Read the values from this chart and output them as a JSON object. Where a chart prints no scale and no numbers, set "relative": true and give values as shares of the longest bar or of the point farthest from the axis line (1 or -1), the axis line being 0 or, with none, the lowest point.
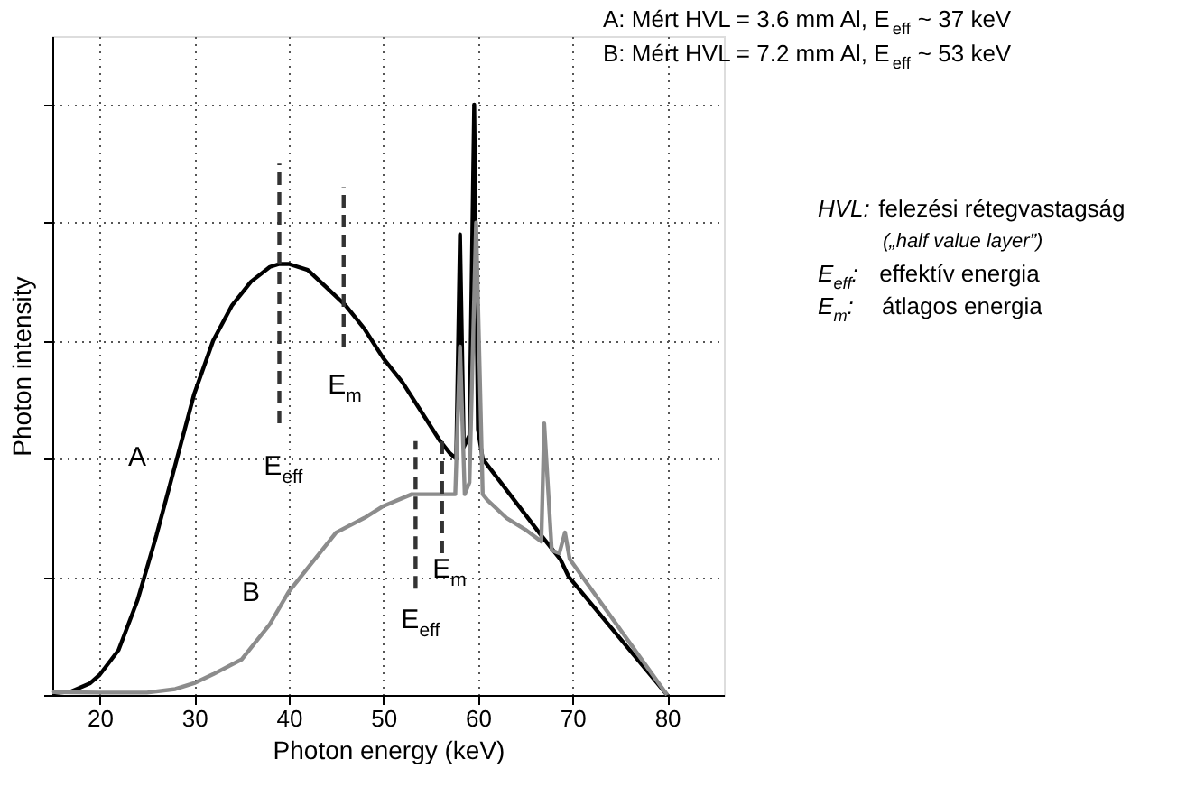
{
  "chart_data": {
    "type": "line",
    "relative": true,
    "xlabel": "Photon energy (keV)",
    "ylabel": "Photon intensity",
    "xlim": [
      15,
      86
    ],
    "xticks": [
      20,
      30,
      40,
      50,
      60,
      70,
      80
    ],
    "grid": true,
    "marker": "none",
    "line_style": "solid",
    "series": [
      {
        "color": "#000000",
        "x": [
          15,
          17,
          19,
          20,
          22,
          24,
          26,
          28,
          30,
          32,
          34,
          36,
          38,
          39,
          40,
          42,
          44,
          46,
          48,
          50,
          52,
          54,
          56,
          57,
          57.7,
          58.1,
          58.5,
          59.1,
          59.6,
          60.0,
          60.5,
          66.7,
          68.7,
          69.6,
          80
        ],
        "values": [
          0.003,
          0.006,
          0.02,
          0.034,
          0.076,
          0.16,
          0.27,
          0.39,
          0.51,
          0.6,
          0.66,
          0.7,
          0.725,
          0.73,
          0.73,
          0.72,
          0.69,
          0.66,
          0.62,
          0.57,
          0.53,
          0.48,
          0.43,
          0.41,
          0.4,
          0.78,
          0.42,
          0.44,
          1.0,
          0.45,
          0.4,
          0.27,
          0.23,
          0.2,
          0
        ]
      },
      {
        "color": "#8c8c8c",
        "x": [
          15,
          20,
          25,
          28,
          30,
          32,
          35,
          38,
          40,
          45,
          48,
          50,
          53,
          56,
          57.6,
          58.1,
          58.6,
          59.1,
          59.8,
          60.5,
          61,
          63,
          65,
          66.7,
          67.0,
          67.8,
          68.6,
          69.2,
          69.7,
          80
        ],
        "values": [
          0.005,
          0.004,
          0.004,
          0.01,
          0.02,
          0.035,
          0.06,
          0.12,
          0.175,
          0.275,
          0.3,
          0.32,
          0.34,
          0.34,
          0.34,
          0.59,
          0.34,
          0.36,
          0.8,
          0.34,
          0.33,
          0.3,
          0.28,
          0.26,
          0.46,
          0.245,
          0.24,
          0.275,
          0.23,
          0
        ]
      },
      {
        "color": "#333333",
        "line_style": "dashed",
        "x": [
          39,
          39
        ],
        "values": [
          0.46,
          0.9
        ]
      },
      {
        "color": "#333333",
        "line_style": "dashed",
        "x": [
          45.8,
          45.8
        ],
        "values": [
          0.59,
          0.86
        ]
      },
      {
        "color": "#333333",
        "line_style": "dashed",
        "x": [
          53.4,
          53.4
        ],
        "values": [
          0.18,
          0.43
        ]
      },
      {
        "color": "#333333",
        "line_style": "dashed",
        "x": [
          56.2,
          56.2
        ],
        "values": [
          0.24,
          0.43
        ]
      }
    ],
    "annotations": [
      "A: Mért HVL = 3.6 mm Al, E$_{eff}$ ~ 37 keV",
      "B: Mért HVL = 7.2 mm Al, E$_{eff}$ ~ 53 keV",
      "HVL: felezési rétegvastagság",
      "(„half value layer”)",
      "E$_{eff}$:   effektív energia",
      "E$_{m}$:    átlagos energia",
      "A",
      "B",
      "E$_{eff}$",
      "E$_{m}$",
      "E$_{eff}$",
      "E$_{m}$"
    ]
  }
}
